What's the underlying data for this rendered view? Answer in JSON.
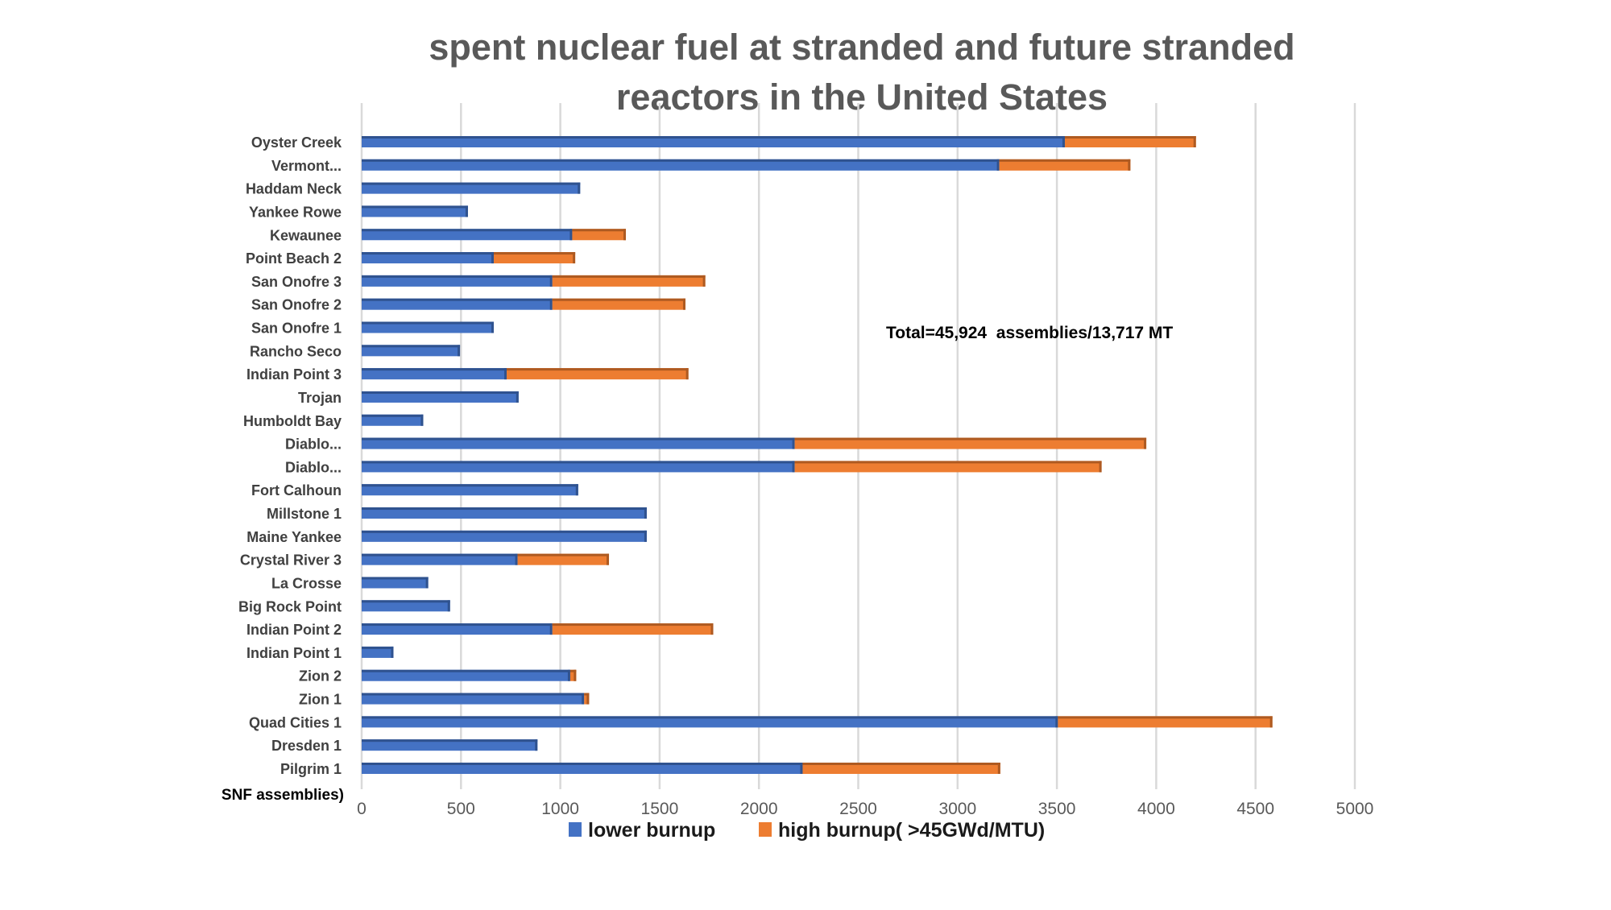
{
  "chart_data": {
    "type": "bar",
    "orientation": "horizontal",
    "stacked": true,
    "title_lines": [
      "spent nuclear fuel at stranded and future stranded",
      "reactors in the United States"
    ],
    "ylabel": "SNF assemblies)",
    "xlabel": "",
    "xlim": [
      0,
      5000
    ],
    "xticks": [
      0,
      500,
      1000,
      1500,
      2000,
      2500,
      3000,
      3500,
      4000,
      4500,
      5000
    ],
    "grid": true,
    "legend_position": "bottom",
    "annotation": "Total=45,924  assemblies/13,717 MT",
    "categories": [
      "Oyster Creek",
      "Vermont...",
      "Haddam Neck",
      "Yankee Rowe",
      "Kewaunee",
      "Point Beach  2",
      "San Onofre 3",
      "San Onofre 2",
      "San Onofre 1",
      "Rancho Seco",
      "Indian Point 3",
      "Trojan",
      "Humboldt Bay",
      "Diablo...",
      "Diablo...",
      "Fort Calhoun",
      "Millstone 1",
      "Maine Yankee",
      "Crystal River 3",
      "La Crosse",
      "Big Rock Point",
      "Indian Point 2",
      "Indian Point 1",
      "Zion 2",
      "Zion 1",
      "Quad Cities 1",
      "Dresden 1",
      "Pilgrim 1"
    ],
    "series": [
      {
        "name": "lower burnup",
        "color": "#4472C4",
        "values": [
          3540,
          3210,
          1100,
          535,
          1060,
          665,
          960,
          960,
          665,
          495,
          730,
          790,
          310,
          2180,
          2180,
          1090,
          1435,
          1435,
          785,
          335,
          445,
          960,
          160,
          1050,
          1120,
          3505,
          885,
          2220
        ]
      },
      {
        "name": "high burnup( >45GWd/MTU)",
        "color": "#ED7D31",
        "values": [
          660,
          660,
          0,
          0,
          270,
          410,
          770,
          670,
          0,
          0,
          915,
          0,
          0,
          1770,
          1545,
          0,
          0,
          0,
          460,
          0,
          0,
          810,
          0,
          30,
          25,
          1080,
          0,
          995
        ]
      }
    ]
  }
}
